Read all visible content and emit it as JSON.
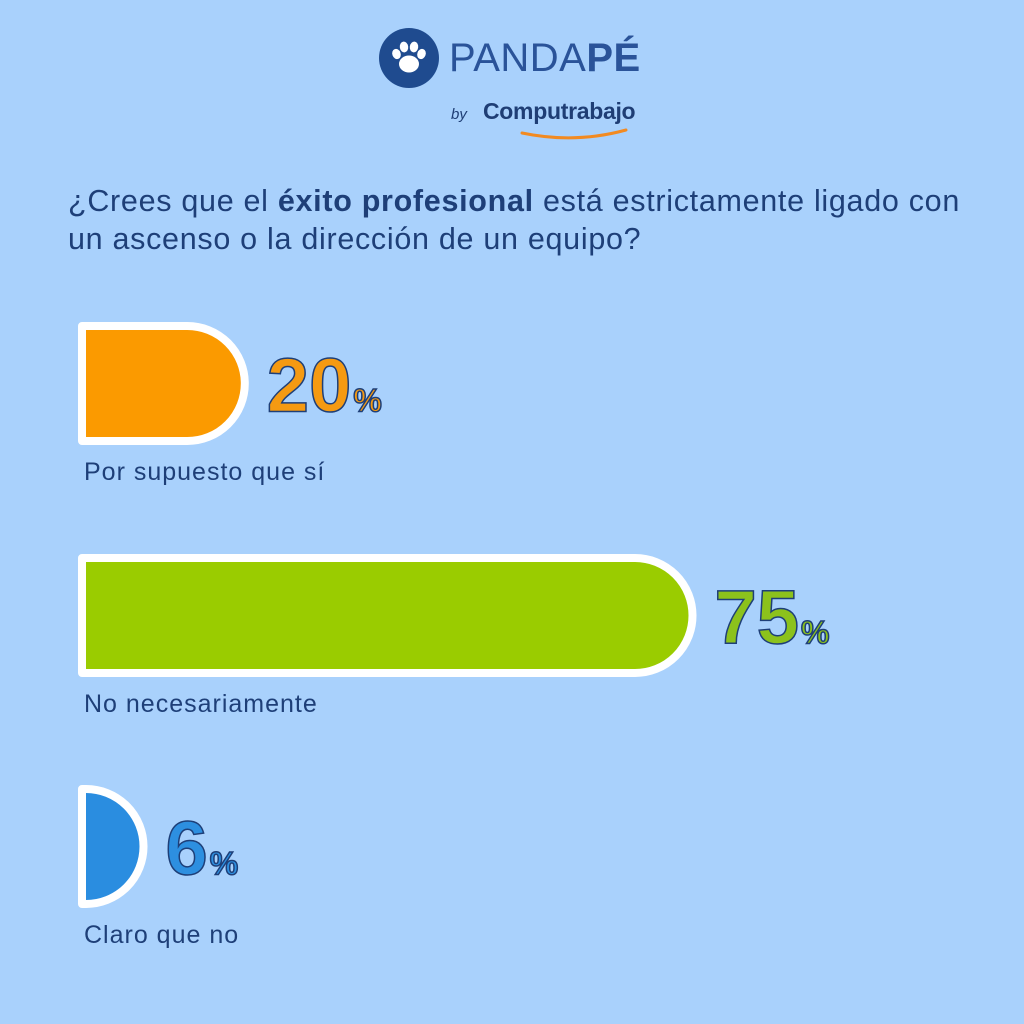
{
  "brand": {
    "name_light": "PANDA",
    "name_bold": "PÉ",
    "by": "by",
    "partner": "Computrabajo"
  },
  "question": {
    "part1": "¿Crees que el ",
    "bold": "éxito profesional",
    "part2": " está estrictamente ligado con un ascenso o la dirección de un equipo?"
  },
  "colors": {
    "background": "#a9d1fc",
    "text": "#1e3f78",
    "logo": "#1f4b8f",
    "swoosh": "#f28a21"
  },
  "chart_data": {
    "type": "bar",
    "orientation": "horizontal",
    "categories": [
      "Por supuesto que sí",
      "No necesariamente",
      "Claro que no"
    ],
    "values": [
      20,
      75,
      6
    ],
    "value_suffix": "%",
    "colors": [
      "#fb9a00",
      "#9acc00",
      "#2a8de0"
    ],
    "label_colors": [
      "#f59a12",
      "#8cc21c",
      "#2d8fe0"
    ],
    "title": "",
    "xlim": [
      0,
      100
    ]
  }
}
